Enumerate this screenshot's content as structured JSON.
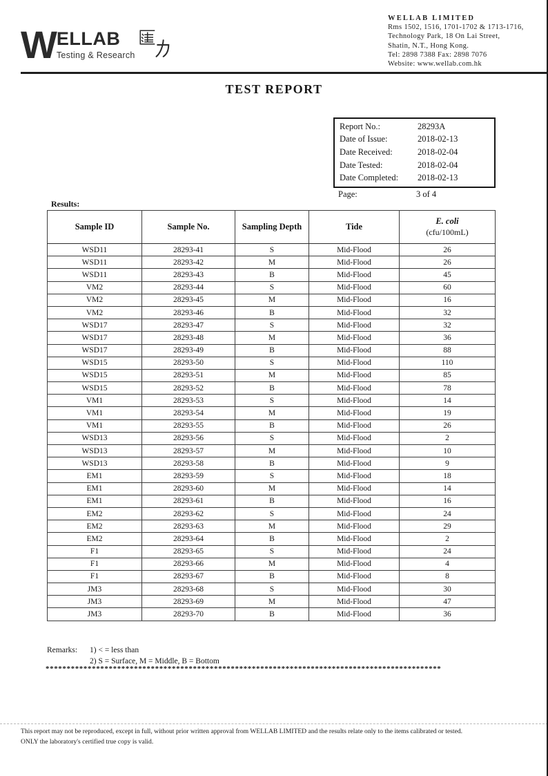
{
  "title": "TEST REPORT",
  "logo": {
    "w": "W",
    "rest": "ELLAB",
    "chinese": "匯力",
    "tagline": "Testing & Research"
  },
  "company": {
    "name": "WELLAB LIMITED",
    "address_lines": [
      "Rms 1502, 1516, 1701-1702 & 1713-1716,",
      "Technology Park, 18 On Lai Street,",
      "Shatin, N.T., Hong Kong.",
      "Tel: 2898 7388   Fax: 2898 7076",
      "Website: www.wellab.com.hk"
    ]
  },
  "report_info": {
    "rows": [
      {
        "label": "Report No.:",
        "value": "28293A"
      },
      {
        "label": "Date of Issue:",
        "value": "2018-02-13"
      },
      {
        "label": "Date Received:",
        "value": "2018-02-04"
      },
      {
        "label": "Date Tested:",
        "value": "2018-02-04"
      },
      {
        "label": "Date Completed:",
        "value": "2018-02-13"
      }
    ],
    "page_label": "Page:",
    "page_value": "3 of 4"
  },
  "results_label": "Results:",
  "table": {
    "columns": [
      {
        "label": "Sample ID"
      },
      {
        "label": "Sample No."
      },
      {
        "label": "Sampling Depth"
      },
      {
        "label": "Tide"
      },
      {
        "label": "E. coli",
        "sub": "(cfu/100mL)"
      }
    ],
    "rows": [
      {
        "id": "WSD11",
        "no": "28293-41",
        "depth": "S",
        "tide": "Mid-Flood",
        "ecoli": "26"
      },
      {
        "id": "WSD11",
        "no": "28293-42",
        "depth": "M",
        "tide": "Mid-Flood",
        "ecoli": "26"
      },
      {
        "id": "WSD11",
        "no": "28293-43",
        "depth": "B",
        "tide": "Mid-Flood",
        "ecoli": "45"
      },
      {
        "id": "VM2",
        "no": "28293-44",
        "depth": "S",
        "tide": "Mid-Flood",
        "ecoli": "60"
      },
      {
        "id": "VM2",
        "no": "28293-45",
        "depth": "M",
        "tide": "Mid-Flood",
        "ecoli": "16"
      },
      {
        "id": "VM2",
        "no": "28293-46",
        "depth": "B",
        "tide": "Mid-Flood",
        "ecoli": "32"
      },
      {
        "id": "WSD17",
        "no": "28293-47",
        "depth": "S",
        "tide": "Mid-Flood",
        "ecoli": "32"
      },
      {
        "id": "WSD17",
        "no": "28293-48",
        "depth": "M",
        "tide": "Mid-Flood",
        "ecoli": "36"
      },
      {
        "id": "WSD17",
        "no": "28293-49",
        "depth": "B",
        "tide": "Mid-Flood",
        "ecoli": "88"
      },
      {
        "id": "WSD15",
        "no": "28293-50",
        "depth": "S",
        "tide": "Mid-Flood",
        "ecoli": "110"
      },
      {
        "id": "WSD15",
        "no": "28293-51",
        "depth": "M",
        "tide": "Mid-Flood",
        "ecoli": "85"
      },
      {
        "id": "WSD15",
        "no": "28293-52",
        "depth": "B",
        "tide": "Mid-Flood",
        "ecoli": "78"
      },
      {
        "id": "VM1",
        "no": "28293-53",
        "depth": "S",
        "tide": "Mid-Flood",
        "ecoli": "14"
      },
      {
        "id": "VM1",
        "no": "28293-54",
        "depth": "M",
        "tide": "Mid-Flood",
        "ecoli": "19"
      },
      {
        "id": "VM1",
        "no": "28293-55",
        "depth": "B",
        "tide": "Mid-Flood",
        "ecoli": "26"
      },
      {
        "id": "WSD13",
        "no": "28293-56",
        "depth": "S",
        "tide": "Mid-Flood",
        "ecoli": "2"
      },
      {
        "id": "WSD13",
        "no": "28293-57",
        "depth": "M",
        "tide": "Mid-Flood",
        "ecoli": "10"
      },
      {
        "id": "WSD13",
        "no": "28293-58",
        "depth": "B",
        "tide": "Mid-Flood",
        "ecoli": "9"
      },
      {
        "id": "EM1",
        "no": "28293-59",
        "depth": "S",
        "tide": "Mid-Flood",
        "ecoli": "18"
      },
      {
        "id": "EM1",
        "no": "28293-60",
        "depth": "M",
        "tide": "Mid-Flood",
        "ecoli": "14"
      },
      {
        "id": "EM1",
        "no": "28293-61",
        "depth": "B",
        "tide": "Mid-Flood",
        "ecoli": "16"
      },
      {
        "id": "EM2",
        "no": "28293-62",
        "depth": "S",
        "tide": "Mid-Flood",
        "ecoli": "24"
      },
      {
        "id": "EM2",
        "no": "28293-63",
        "depth": "M",
        "tide": "Mid-Flood",
        "ecoli": "29"
      },
      {
        "id": "EM2",
        "no": "28293-64",
        "depth": "B",
        "tide": "Mid-Flood",
        "ecoli": "2"
      },
      {
        "id": "F1",
        "no": "28293-65",
        "depth": "S",
        "tide": "Mid-Flood",
        "ecoli": "24"
      },
      {
        "id": "F1",
        "no": "28293-66",
        "depth": "M",
        "tide": "Mid-Flood",
        "ecoli": "4"
      },
      {
        "id": "F1",
        "no": "28293-67",
        "depth": "B",
        "tide": "Mid-Flood",
        "ecoli": "8"
      },
      {
        "id": "JM3",
        "no": "28293-68",
        "depth": "S",
        "tide": "Mid-Flood",
        "ecoli": "30"
      },
      {
        "id": "JM3",
        "no": "28293-69",
        "depth": "M",
        "tide": "Mid-Flood",
        "ecoli": "47"
      },
      {
        "id": "JM3",
        "no": "28293-70",
        "depth": "B",
        "tide": "Mid-Flood",
        "ecoli": "36"
      }
    ]
  },
  "remarks": {
    "label": "Remarks:",
    "lines": [
      "1) < = less than",
      "2) S = Surface, M = Middle, B = Bottom"
    ]
  },
  "separator": "**********************************************************************************************",
  "footer": {
    "lines": [
      "This report may not be reproduced, except in full, without prior written approval from WELLAB LIMITED and the results relate only to the items calibrated or tested.",
      "ONLY the laboratory's certified true copy is valid."
    ]
  }
}
